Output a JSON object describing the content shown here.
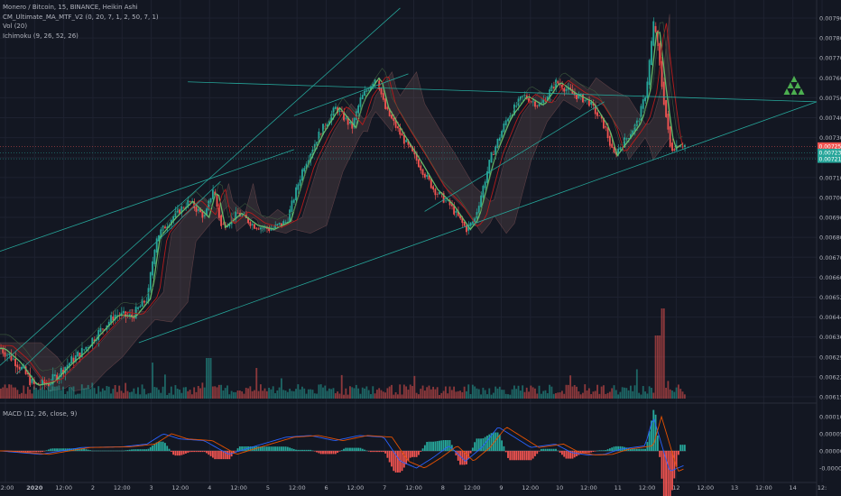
{
  "legend": {
    "symbol_line": "Monero / Bitcoin, 15, BINANCE, Heikin Ashi",
    "ma_line": "CM_Ultimate_MA_MTF_V2 (0, 20, 7, 1, 2, 50, 7, 1)",
    "vol_line": "Vol (20)",
    "ichimoku_line": "Ichimoku (9, 26, 52, 26)",
    "macd_line": "MACD (12, 26, close, 9)"
  },
  "chart_data": {
    "type": "candlestick",
    "symbol": "Monero / Bitcoin",
    "exchange": "BINANCE",
    "interval": "15",
    "style": "Heikin Ashi",
    "price_axis": {
      "ticks": [
        "0.007900",
        "0.007800",
        "0.007700",
        "0.007600",
        "0.007500",
        "0.007400",
        "0.007300",
        "0.007200",
        "0.007100",
        "0.007000",
        "0.006900",
        "0.006800",
        "0.006700",
        "0.006600",
        "0.006520",
        "0.006440",
        "0.006360",
        "0.006290",
        "0.006220",
        "0.006150"
      ],
      "range": [
        0.00615,
        0.0079
      ]
    },
    "macd_axis": {
      "ticks": [
        "0.000100",
        "0.000050",
        "0.000000",
        "-0.000050"
      ],
      "range": [
        -7e-05,
        0.00012
      ]
    },
    "time_axis": {
      "ticks": [
        "12:00",
        "2020",
        "12:00",
        "2",
        "12:00",
        "3",
        "12:00",
        "4",
        "12:00",
        "5",
        "12:00",
        "6",
        "12:00",
        "7",
        "12:00",
        "8",
        "12:00",
        "9",
        "12:00",
        "10",
        "12:00",
        "11",
        "12:00",
        "12",
        "12:00",
        "13",
        "12:00",
        "14",
        "12:"
      ]
    },
    "price_labels": [
      {
        "value": 0.007256,
        "text": "0.007256",
        "color": "#ef5350"
      },
      {
        "value": 0.007233,
        "text": "0.007233",
        "color": "#26a69a"
      },
      {
        "value": 0.007212,
        "text": "0.00721",
        "color": "#26a69a"
      }
    ],
    "price_path": [
      [
        0,
        0.00632
      ],
      [
        0.02,
        0.00627
      ],
      [
        0.04,
        0.00619
      ],
      [
        0.06,
        0.0062
      ],
      [
        0.08,
        0.00626
      ],
      [
        0.1,
        0.00631
      ],
      [
        0.12,
        0.00638
      ],
      [
        0.14,
        0.00645
      ],
      [
        0.16,
        0.00644
      ],
      [
        0.18,
        0.00652
      ],
      [
        0.19,
        0.0068
      ],
      [
        0.21,
        0.0069
      ],
      [
        0.23,
        0.00698
      ],
      [
        0.25,
        0.0069
      ],
      [
        0.26,
        0.00705
      ],
      [
        0.27,
        0.00685
      ],
      [
        0.29,
        0.00692
      ],
      [
        0.31,
        0.00686
      ],
      [
        0.33,
        0.00684
      ],
      [
        0.35,
        0.00688
      ],
      [
        0.37,
        0.00715
      ],
      [
        0.39,
        0.00732
      ],
      [
        0.41,
        0.00745
      ],
      [
        0.43,
        0.00735
      ],
      [
        0.44,
        0.00749
      ],
      [
        0.46,
        0.00761
      ],
      [
        0.47,
        0.00745
      ],
      [
        0.49,
        0.00731
      ],
      [
        0.51,
        0.00718
      ],
      [
        0.53,
        0.00704
      ],
      [
        0.55,
        0.00696
      ],
      [
        0.57,
        0.00684
      ],
      [
        0.58,
        0.00689
      ],
      [
        0.6,
        0.0072
      ],
      [
        0.62,
        0.0074
      ],
      [
        0.64,
        0.00751
      ],
      [
        0.66,
        0.00746
      ],
      [
        0.68,
        0.00758
      ],
      [
        0.7,
        0.00752
      ],
      [
        0.72,
        0.00748
      ],
      [
        0.74,
        0.00735
      ],
      [
        0.75,
        0.00721
      ],
      [
        0.77,
        0.00732
      ],
      [
        0.78,
        0.00738
      ],
      [
        0.79,
        0.00753
      ],
      [
        0.8,
        0.0079
      ],
      [
        0.81,
        0.00754
      ],
      [
        0.82,
        0.00724
      ],
      [
        0.83,
        0.00727
      ],
      [
        0.84,
        0.00726
      ]
    ],
    "candle_count": 330,
    "trend_lines": [
      {
        "from": [
          0.0,
          0.00673
        ],
        "to": [
          0.36,
          0.00724
        ]
      },
      {
        "from": [
          0.0,
          0.00626
        ],
        "to": [
          0.49,
          0.00795
        ]
      },
      {
        "from": [
          0.17,
          0.00634
        ],
        "to": [
          1.0,
          0.00748
        ]
      },
      {
        "from": [
          0.23,
          0.00758
        ],
        "to": [
          1.0,
          0.00748
        ]
      },
      {
        "from": [
          0.02,
          0.00623
        ],
        "to": [
          0.27,
          0.00708
        ]
      },
      {
        "from": [
          0.52,
          0.00693
        ],
        "to": [
          0.74,
          0.00748
        ]
      },
      {
        "from": [
          0.36,
          0.00741
        ],
        "to": [
          0.5,
          0.00762
        ]
      }
    ],
    "macd_path": [
      [
        0,
        0.0
      ],
      [
        0.05,
        -1e-05
      ],
      [
        0.1,
        1e-05
      ],
      [
        0.15,
        1.2e-05
      ],
      [
        0.18,
        2e-05
      ],
      [
        0.2,
        5e-05
      ],
      [
        0.22,
        3.5e-05
      ],
      [
        0.25,
        3e-05
      ],
      [
        0.28,
        -1e-05
      ],
      [
        0.31,
        1.2e-05
      ],
      [
        0.35,
        4e-05
      ],
      [
        0.38,
        4.5e-05
      ],
      [
        0.41,
        3e-05
      ],
      [
        0.44,
        4.5e-05
      ],
      [
        0.47,
        4e-05
      ],
      [
        0.49,
        -3e-05
      ],
      [
        0.51,
        -5e-05
      ],
      [
        0.53,
        -2e-05
      ],
      [
        0.55,
        1.5e-05
      ],
      [
        0.57,
        -3e-05
      ],
      [
        0.59,
        1e-05
      ],
      [
        0.61,
        7e-05
      ],
      [
        0.63,
        4e-05
      ],
      [
        0.65,
        1e-05
      ],
      [
        0.68,
        2e-05
      ],
      [
        0.7,
        -5e-06
      ],
      [
        0.72,
        -1.2e-05
      ],
      [
        0.74,
        -1e-05
      ],
      [
        0.76,
        5e-06
      ],
      [
        0.79,
        1.5e-05
      ],
      [
        0.8,
        0.0001
      ],
      [
        0.82,
        -6e-05
      ],
      [
        0.84,
        -4e-05
      ]
    ]
  }
}
